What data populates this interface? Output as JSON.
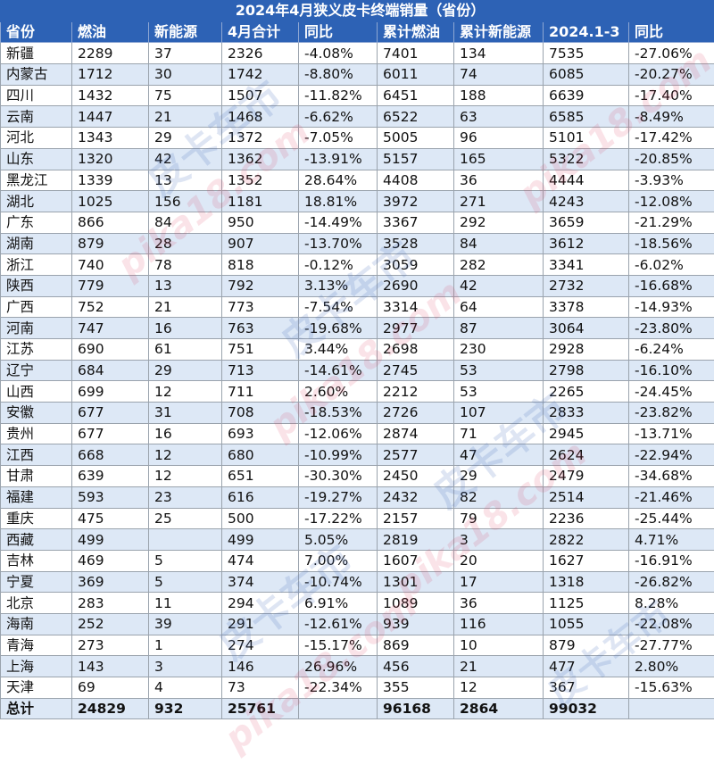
{
  "title": "2024年4月狭义皮卡终端销量（省份）",
  "headers": [
    "省份",
    "燃油",
    "新能源",
    "4月合计",
    "同比",
    "累计燃油",
    "累计新能源",
    "2024.1-3",
    "同比"
  ],
  "rows": [
    [
      "新疆",
      "2289",
      "37",
      "2326",
      "-4.08%",
      "7401",
      "134",
      "7535",
      "-27.06%"
    ],
    [
      "内蒙古",
      "1712",
      "30",
      "1742",
      "-8.80%",
      "6011",
      "74",
      "6085",
      "-20.27%"
    ],
    [
      "四川",
      "1432",
      "75",
      "1507",
      "-11.82%",
      "6451",
      "188",
      "6639",
      "-17.40%"
    ],
    [
      "云南",
      "1447",
      "21",
      "1468",
      "-6.62%",
      "6522",
      "63",
      "6585",
      "-8.49%"
    ],
    [
      "河北",
      "1343",
      "29",
      "1372",
      "-7.05%",
      "5005",
      "96",
      "5101",
      "-17.42%"
    ],
    [
      "山东",
      "1320",
      "42",
      "1362",
      "-13.91%",
      "5157",
      "165",
      "5322",
      "-20.85%"
    ],
    [
      "黑龙江",
      "1339",
      "13",
      "1352",
      "28.64%",
      "4408",
      "36",
      "4444",
      "-3.93%"
    ],
    [
      "湖北",
      "1025",
      "156",
      "1181",
      "18.81%",
      "3972",
      "271",
      "4243",
      "-12.08%"
    ],
    [
      "广东",
      "866",
      "84",
      "950",
      "-14.49%",
      "3367",
      "292",
      "3659",
      "-21.29%"
    ],
    [
      "湖南",
      "879",
      "28",
      "907",
      "-13.70%",
      "3528",
      "84",
      "3612",
      "-18.56%"
    ],
    [
      "浙江",
      "740",
      "78",
      "818",
      "-0.12%",
      "3059",
      "282",
      "3341",
      "-6.02%"
    ],
    [
      "陕西",
      "779",
      "13",
      "792",
      "3.13%",
      "2690",
      "42",
      "2732",
      "-16.68%"
    ],
    [
      "广西",
      "752",
      "21",
      "773",
      "-7.54%",
      "3314",
      "64",
      "3378",
      "-14.93%"
    ],
    [
      "河南",
      "747",
      "16",
      "763",
      "-19.68%",
      "2977",
      "87",
      "3064",
      "-23.80%"
    ],
    [
      "江苏",
      "690",
      "61",
      "751",
      "3.44%",
      "2698",
      "230",
      "2928",
      "-6.24%"
    ],
    [
      "辽宁",
      "684",
      "29",
      "713",
      "-14.61%",
      "2745",
      "53",
      "2798",
      "-16.10%"
    ],
    [
      "山西",
      "699",
      "12",
      "711",
      "2.60%",
      "2212",
      "53",
      "2265",
      "-24.45%"
    ],
    [
      "安徽",
      "677",
      "31",
      "708",
      "-18.53%",
      "2726",
      "107",
      "2833",
      "-23.82%"
    ],
    [
      "贵州",
      "677",
      "16",
      "693",
      "-12.06%",
      "2874",
      "71",
      "2945",
      "-13.71%"
    ],
    [
      "江西",
      "668",
      "12",
      "680",
      "-10.99%",
      "2577",
      "47",
      "2624",
      "-22.94%"
    ],
    [
      "甘肃",
      "639",
      "12",
      "651",
      "-30.30%",
      "2450",
      "29",
      "2479",
      "-34.68%"
    ],
    [
      "福建",
      "593",
      "23",
      "616",
      "-19.27%",
      "2432",
      "82",
      "2514",
      "-21.46%"
    ],
    [
      "重庆",
      "475",
      "25",
      "500",
      "-17.22%",
      "2157",
      "79",
      "2236",
      "-25.44%"
    ],
    [
      "西藏",
      "499",
      "",
      "499",
      "5.05%",
      "2819",
      "3",
      "2822",
      "4.71%"
    ],
    [
      "吉林",
      "469",
      "5",
      "474",
      "7.00%",
      "1607",
      "20",
      "1627",
      "-16.91%"
    ],
    [
      "宁夏",
      "369",
      "5",
      "374",
      "-10.74%",
      "1301",
      "17",
      "1318",
      "-26.82%"
    ],
    [
      "北京",
      "283",
      "11",
      "294",
      "6.91%",
      "1089",
      "36",
      "1125",
      "8.28%"
    ],
    [
      "海南",
      "252",
      "39",
      "291",
      "-12.61%",
      "939",
      "116",
      "1055",
      "-22.08%"
    ],
    [
      "青海",
      "273",
      "1",
      "274",
      "-15.17%",
      "869",
      "10",
      "879",
      "-27.77%"
    ],
    [
      "上海",
      "143",
      "3",
      "146",
      "26.96%",
      "456",
      "21",
      "477",
      "2.80%"
    ],
    [
      "天津",
      "69",
      "4",
      "73",
      "-22.34%",
      "355",
      "12",
      "367",
      "-15.63%"
    ]
  ],
  "total": [
    "总计",
    "24829",
    "932",
    "25761",
    "",
    "96168",
    "2864",
    "99032",
    ""
  ],
  "watermark": {
    "brand": "皮卡车市",
    "site": "pika18.com"
  }
}
